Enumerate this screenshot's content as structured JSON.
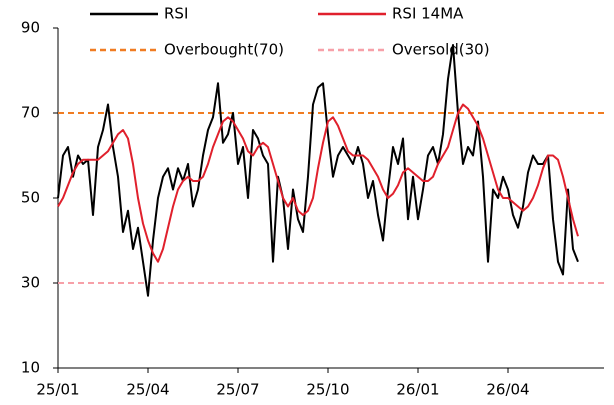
{
  "chart_data": {
    "type": "line",
    "categories": [
      "25/01",
      null,
      null,
      null,
      null,
      null,
      null,
      null,
      null,
      null,
      null,
      null,
      null,
      null,
      null,
      null,
      null,
      null,
      "25/04",
      null,
      null,
      null,
      null,
      null,
      null,
      null,
      null,
      null,
      null,
      null,
      null,
      null,
      null,
      null,
      null,
      null,
      "25/07",
      null,
      null,
      null,
      null,
      null,
      null,
      null,
      null,
      null,
      null,
      null,
      null,
      null,
      null,
      null,
      null,
      null,
      "25/10",
      null,
      null,
      null,
      null,
      null,
      null,
      null,
      null,
      null,
      null,
      null,
      null,
      null,
      null,
      null,
      null,
      null,
      "26/01",
      null,
      null,
      null,
      null,
      null,
      null,
      null,
      null,
      null,
      null,
      null,
      null,
      null,
      null,
      null,
      null,
      null,
      "26/04",
      null,
      null,
      null,
      null,
      null,
      null,
      null,
      null,
      null,
      null,
      null,
      null,
      null,
      null
    ],
    "series": [
      {
        "name": "RSI",
        "color": "#000000",
        "values": [
          50,
          60,
          62,
          55,
          60,
          58,
          59,
          46,
          62,
          66,
          72,
          62,
          55,
          42,
          47,
          38,
          43,
          35,
          27,
          40,
          50,
          55,
          57,
          52,
          57,
          54,
          58,
          48,
          52,
          60,
          66,
          69,
          77,
          63,
          65,
          70,
          58,
          62,
          50,
          66,
          64,
          60,
          58,
          35,
          55,
          50,
          38,
          52,
          45,
          42,
          55,
          72,
          76,
          77,
          65,
          55,
          60,
          62,
          60,
          58,
          62,
          58,
          50,
          54,
          46,
          40,
          52,
          62,
          58,
          64,
          45,
          55,
          45,
          52,
          60,
          62,
          58,
          65,
          78,
          86,
          70,
          58,
          62,
          60,
          68,
          55,
          35,
          52,
          50,
          55,
          52,
          46,
          43,
          48,
          56,
          60,
          58,
          58,
          60,
          45,
          35,
          32,
          52,
          38,
          35
        ]
      },
      {
        "name": "RSI 14MA",
        "color": "#e0202c",
        "values": [
          48,
          50,
          53,
          56,
          58,
          59,
          59,
          59,
          59,
          60,
          61,
          63,
          65,
          66,
          64,
          58,
          50,
          44,
          40,
          37,
          35,
          38,
          43,
          48,
          52,
          54,
          55,
          54,
          54,
          55,
          58,
          62,
          65,
          68,
          69,
          68,
          66,
          64,
          61,
          60,
          62,
          63,
          62,
          58,
          54,
          50,
          48,
          50,
          47,
          46,
          47,
          50,
          57,
          63,
          68,
          69,
          67,
          64,
          61,
          60,
          60,
          60,
          59,
          57,
          55,
          52,
          50,
          51,
          53,
          56,
          57,
          56,
          55,
          54,
          54,
          55,
          58,
          60,
          62,
          66,
          70,
          72,
          71,
          69,
          67,
          64,
          60,
          56,
          52,
          50,
          50,
          49,
          48,
          47,
          48,
          50,
          53,
          57,
          60,
          60,
          59,
          55,
          50,
          45,
          41
        ]
      }
    ],
    "reference_lines": [
      {
        "name": "Overbought(70)",
        "value": 70,
        "color": "#f07c22",
        "dashed": true
      },
      {
        "name": "Oversold(30)",
        "value": 30,
        "color": "#f7a0a8",
        "dashed": true
      }
    ],
    "ylim": [
      10,
      90
    ],
    "yticks": [
      10,
      30,
      50,
      70,
      90
    ],
    "grid": false
  }
}
